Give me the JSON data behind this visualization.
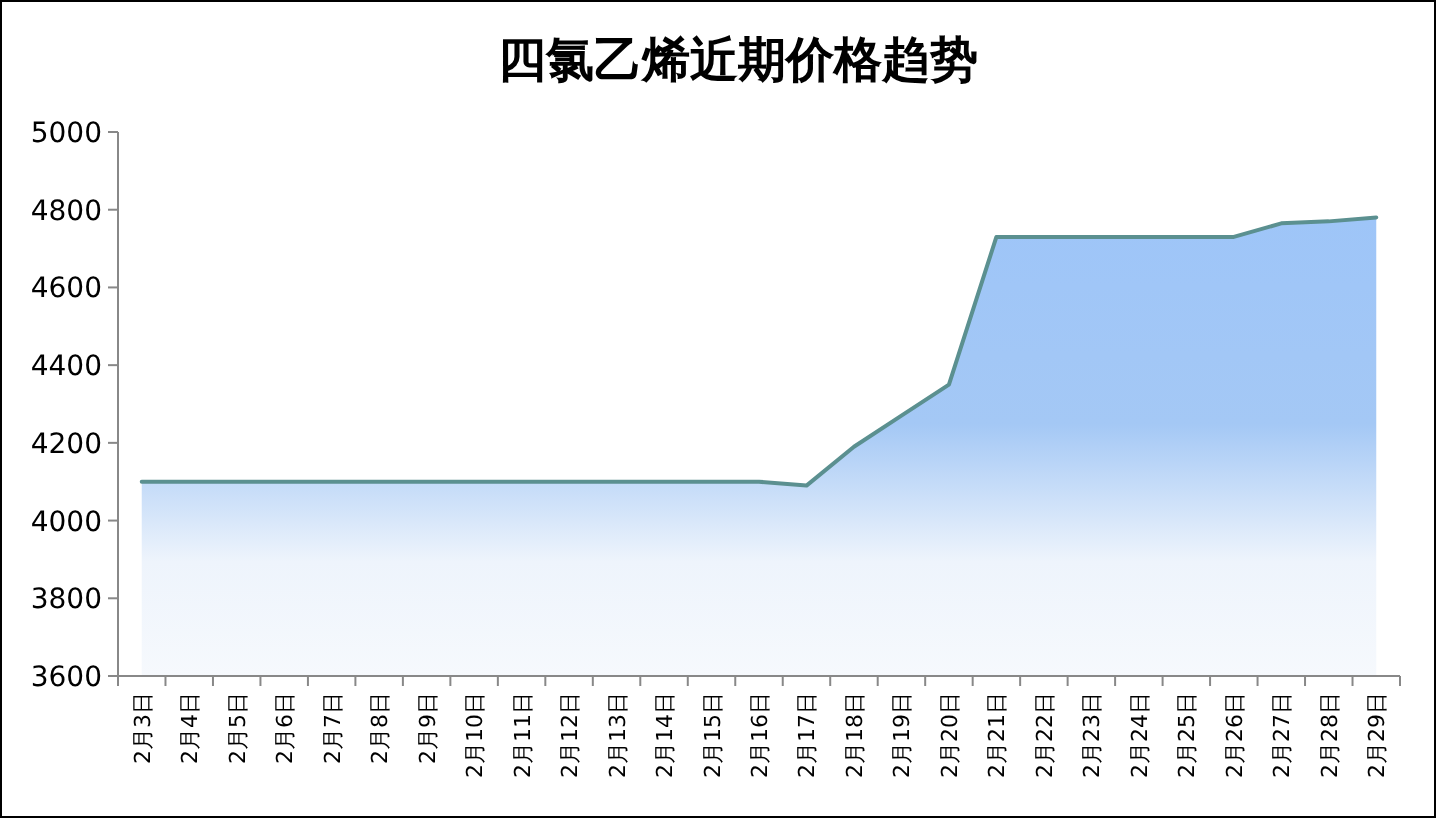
{
  "chart_data": {
    "type": "area",
    "title": "四氯乙烯近期价格趋势",
    "categories": [
      "2月3日",
      "2月4日",
      "2月5日",
      "2月6日",
      "2月7日",
      "2月8日",
      "2月9日",
      "2月10日",
      "2月11日",
      "2月12日",
      "2月13日",
      "2月14日",
      "2月15日",
      "2月16日",
      "2月17日",
      "2月18日",
      "2月19日",
      "2月20日",
      "2月21日",
      "2月22日",
      "2月23日",
      "2月24日",
      "2月25日",
      "2月26日",
      "2月27日",
      "2月28日",
      "2月29日"
    ],
    "series": [
      {
        "color": "#5b9090",
        "values": [
          4100,
          4100,
          4100,
          4100,
          4100,
          4100,
          4100,
          4100,
          4100,
          4100,
          4100,
          4100,
          4100,
          4100,
          4090,
          4190,
          4270,
          4350,
          4730,
          4730,
          4730,
          4730,
          4730,
          4730,
          4765,
          4770,
          4780
        ]
      }
    ],
    "ylim": [
      3600,
      5000
    ],
    "yticks": [
      3600,
      3800,
      4000,
      4200,
      4400,
      4600,
      4800,
      5000
    ],
    "grid": false
  }
}
